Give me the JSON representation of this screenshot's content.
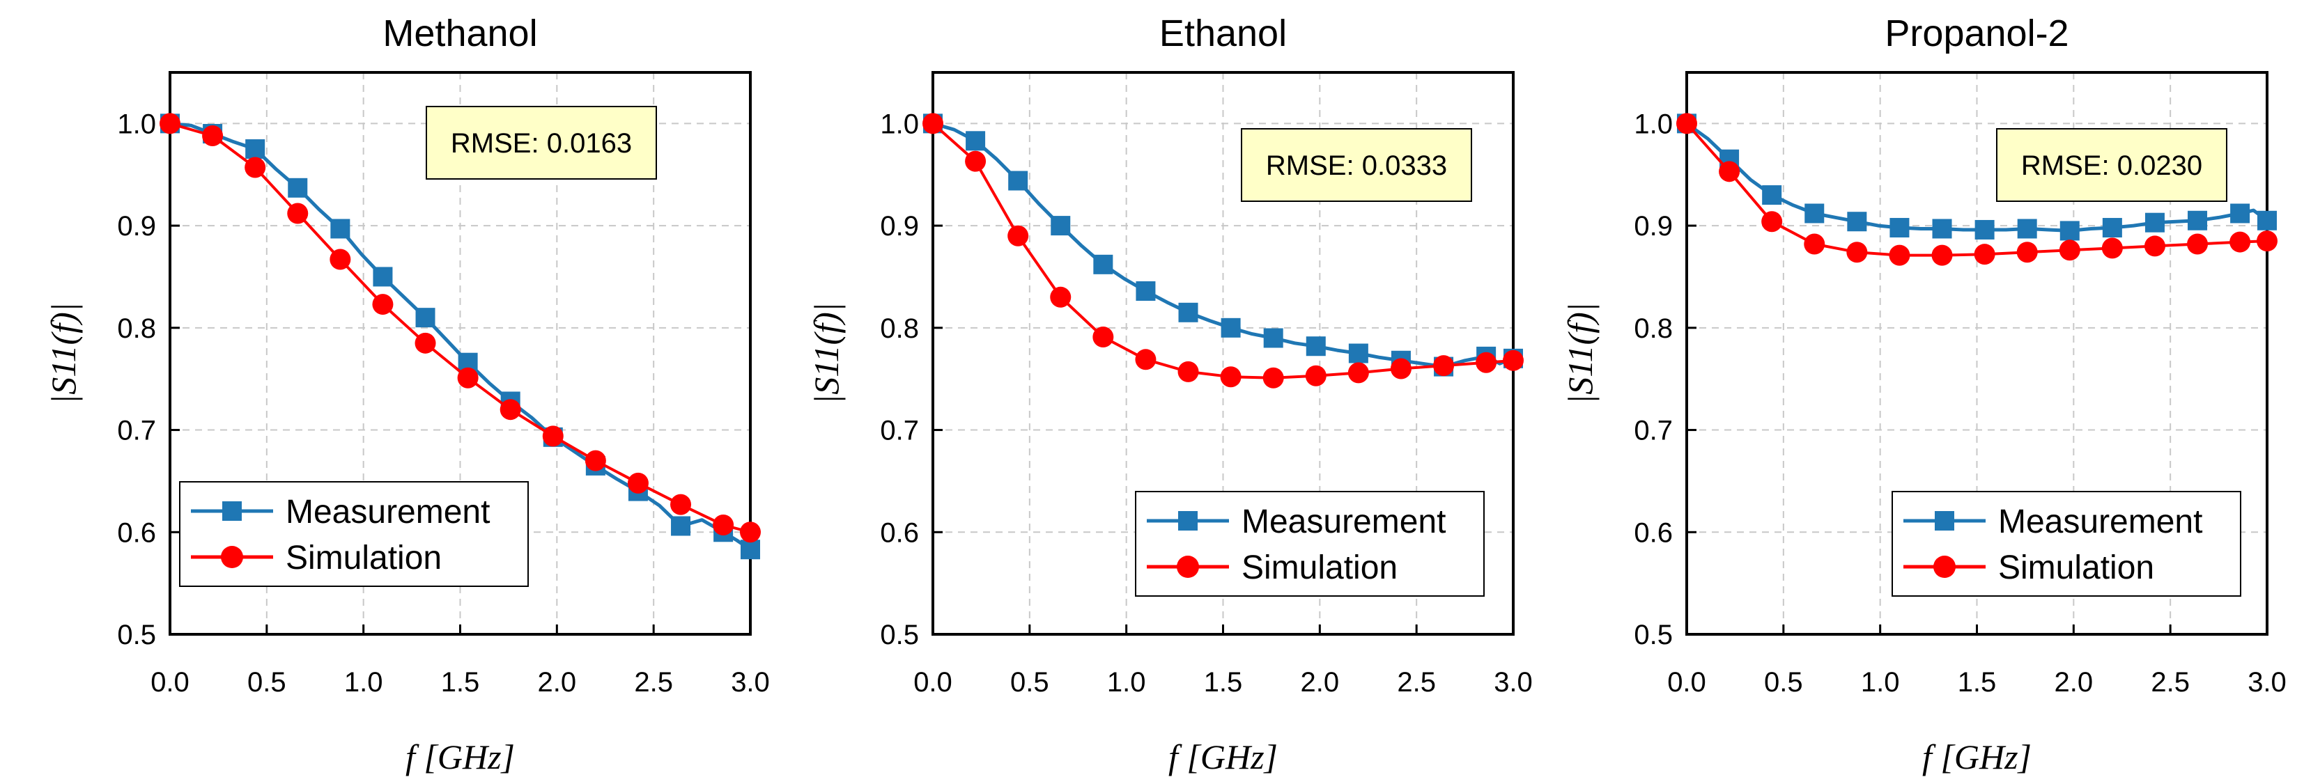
{
  "chart_data": [
    {
      "type": "line",
      "title": "Methanol",
      "xlabel": "f [GHz]",
      "ylabel": "|S11(f)|",
      "xlim": [
        0.0,
        3.0
      ],
      "ylim": [
        0.5,
        1.05
      ],
      "xticks": [
        "0.0",
        "0.5",
        "1.0",
        "1.5",
        "2.0",
        "2.5",
        "3.0"
      ],
      "yticks": [
        "0.5",
        "0.6",
        "0.7",
        "0.8",
        "0.9",
        "1.0"
      ],
      "grid": true,
      "legend_position": "bottom-left",
      "annotation": "RMSE: 0.0163",
      "series": [
        {
          "name": "Measurement",
          "color": "#1f77b4",
          "marker": "square",
          "markers": [
            [
              0.0,
              1.0
            ],
            [
              0.22,
              0.99
            ],
            [
              0.44,
              0.975
            ],
            [
              0.66,
              0.937
            ],
            [
              0.88,
              0.897
            ],
            [
              1.1,
              0.85
            ],
            [
              1.32,
              0.81
            ],
            [
              1.54,
              0.766
            ],
            [
              1.76,
              0.728
            ],
            [
              1.98,
              0.693
            ],
            [
              2.2,
              0.665
            ],
            [
              2.42,
              0.64
            ],
            [
              2.64,
              0.606
            ],
            [
              2.86,
              0.6
            ],
            [
              3.0,
              0.583
            ]
          ],
          "values": [
            [
              0.0,
              1.0
            ],
            [
              0.11,
              0.998
            ],
            [
              0.22,
              0.99
            ],
            [
              0.33,
              0.982
            ],
            [
              0.44,
              0.975
            ],
            [
              0.55,
              0.955
            ],
            [
              0.66,
              0.937
            ],
            [
              0.77,
              0.916
            ],
            [
              0.88,
              0.897
            ],
            [
              0.99,
              0.872
            ],
            [
              1.1,
              0.85
            ],
            [
              1.21,
              0.83
            ],
            [
              1.32,
              0.81
            ],
            [
              1.43,
              0.788
            ],
            [
              1.54,
              0.766
            ],
            [
              1.65,
              0.746
            ],
            [
              1.76,
              0.728
            ],
            [
              1.87,
              0.712
            ],
            [
              1.98,
              0.693
            ],
            [
              2.09,
              0.679
            ],
            [
              2.2,
              0.665
            ],
            [
              2.31,
              0.652
            ],
            [
              2.42,
              0.64
            ],
            [
              2.53,
              0.626
            ],
            [
              2.64,
              0.606
            ],
            [
              2.75,
              0.612
            ],
            [
              2.86,
              0.6
            ],
            [
              2.93,
              0.592
            ],
            [
              3.0,
              0.583
            ]
          ]
        },
        {
          "name": "Simulation",
          "color": "#ff0000",
          "marker": "circle",
          "values": [
            [
              0.0,
              1.0
            ],
            [
              0.22,
              0.988
            ],
            [
              0.44,
              0.957
            ],
            [
              0.66,
              0.912
            ],
            [
              0.88,
              0.867
            ],
            [
              1.1,
              0.823
            ],
            [
              1.32,
              0.785
            ],
            [
              1.54,
              0.751
            ],
            [
              1.76,
              0.72
            ],
            [
              1.98,
              0.694
            ],
            [
              2.2,
              0.67
            ],
            [
              2.42,
              0.648
            ],
            [
              2.64,
              0.627
            ],
            [
              2.86,
              0.607
            ],
            [
              3.0,
              0.6
            ]
          ]
        }
      ]
    },
    {
      "type": "line",
      "title": "Ethanol",
      "xlabel": "f [GHz]",
      "ylabel": "|S11(f)|",
      "xlim": [
        0.0,
        3.0
      ],
      "ylim": [
        0.5,
        1.05
      ],
      "xticks": [
        "0.0",
        "0.5",
        "1.0",
        "1.5",
        "2.0",
        "2.5",
        "3.0"
      ],
      "yticks": [
        "0.5",
        "0.6",
        "0.7",
        "0.8",
        "0.9",
        "1.0"
      ],
      "grid": true,
      "legend_position": "bottom-right",
      "annotation": "RMSE: 0.0333",
      "series": [
        {
          "name": "Measurement",
          "color": "#1f77b4",
          "marker": "square",
          "markers": [
            [
              0.0,
              1.0
            ],
            [
              0.22,
              0.983
            ],
            [
              0.44,
              0.944
            ],
            [
              0.66,
              0.9
            ],
            [
              0.88,
              0.862
            ],
            [
              1.1,
              0.836
            ],
            [
              1.32,
              0.815
            ],
            [
              1.54,
              0.8
            ],
            [
              1.76,
              0.79
            ],
            [
              1.98,
              0.782
            ],
            [
              2.2,
              0.775
            ],
            [
              2.42,
              0.768
            ],
            [
              2.64,
              0.762
            ],
            [
              2.86,
              0.772
            ],
            [
              3.0,
              0.77
            ]
          ],
          "values": [
            [
              0.0,
              1.0
            ],
            [
              0.11,
              0.994
            ],
            [
              0.22,
              0.983
            ],
            [
              0.33,
              0.965
            ],
            [
              0.44,
              0.944
            ],
            [
              0.55,
              0.921
            ],
            [
              0.66,
              0.9
            ],
            [
              0.77,
              0.88
            ],
            [
              0.88,
              0.862
            ],
            [
              0.99,
              0.848
            ],
            [
              1.1,
              0.836
            ],
            [
              1.21,
              0.825
            ],
            [
              1.32,
              0.815
            ],
            [
              1.43,
              0.807
            ],
            [
              1.54,
              0.8
            ],
            [
              1.65,
              0.794
            ],
            [
              1.76,
              0.79
            ],
            [
              1.87,
              0.785
            ],
            [
              1.98,
              0.782
            ],
            [
              2.09,
              0.778
            ],
            [
              2.2,
              0.775
            ],
            [
              2.31,
              0.771
            ],
            [
              2.42,
              0.768
            ],
            [
              2.53,
              0.765
            ],
            [
              2.64,
              0.762
            ],
            [
              2.75,
              0.768
            ],
            [
              2.86,
              0.772
            ],
            [
              2.93,
              0.765
            ],
            [
              3.0,
              0.77
            ]
          ]
        },
        {
          "name": "Simulation",
          "color": "#ff0000",
          "marker": "circle",
          "values": [
            [
              0.0,
              1.0
            ],
            [
              0.22,
              0.963
            ],
            [
              0.44,
              0.89
            ],
            [
              0.66,
              0.83
            ],
            [
              0.88,
              0.791
            ],
            [
              1.1,
              0.769
            ],
            [
              1.32,
              0.757
            ],
            [
              1.54,
              0.752
            ],
            [
              1.76,
              0.751
            ],
            [
              1.98,
              0.753
            ],
            [
              2.2,
              0.756
            ],
            [
              2.42,
              0.76
            ],
            [
              2.64,
              0.763
            ],
            [
              2.86,
              0.766
            ],
            [
              3.0,
              0.768
            ]
          ]
        }
      ]
    },
    {
      "type": "line",
      "title": "Propanol-2",
      "xlabel": "f [GHz]",
      "ylabel": "|S11(f)|",
      "xlim": [
        0.0,
        3.0
      ],
      "ylim": [
        0.5,
        1.05
      ],
      "xticks": [
        "0.0",
        "0.5",
        "1.0",
        "1.5",
        "2.0",
        "2.5",
        "3.0"
      ],
      "yticks": [
        "0.5",
        "0.6",
        "0.7",
        "0.8",
        "0.9",
        "1.0"
      ],
      "grid": true,
      "legend_position": "bottom-right",
      "annotation": "RMSE: 0.0230",
      "series": [
        {
          "name": "Measurement",
          "color": "#1f77b4",
          "marker": "square",
          "markers": [
            [
              0.0,
              1.0
            ],
            [
              0.22,
              0.965
            ],
            [
              0.44,
              0.93
            ],
            [
              0.66,
              0.912
            ],
            [
              0.88,
              0.904
            ],
            [
              1.1,
              0.898
            ],
            [
              1.32,
              0.897
            ],
            [
              1.54,
              0.896
            ],
            [
              1.76,
              0.897
            ],
            [
              1.98,
              0.895
            ],
            [
              2.2,
              0.898
            ],
            [
              2.42,
              0.903
            ],
            [
              2.64,
              0.905
            ],
            [
              2.86,
              0.912
            ],
            [
              3.0,
              0.905
            ]
          ],
          "values": [
            [
              0.0,
              1.0
            ],
            [
              0.11,
              0.985
            ],
            [
              0.22,
              0.965
            ],
            [
              0.33,
              0.945
            ],
            [
              0.44,
              0.93
            ],
            [
              0.55,
              0.92
            ],
            [
              0.66,
              0.912
            ],
            [
              0.77,
              0.908
            ],
            [
              0.88,
              0.904
            ],
            [
              0.99,
              0.9
            ],
            [
              1.1,
              0.898
            ],
            [
              1.21,
              0.897
            ],
            [
              1.32,
              0.897
            ],
            [
              1.43,
              0.896
            ],
            [
              1.54,
              0.896
            ],
            [
              1.65,
              0.896
            ],
            [
              1.76,
              0.897
            ],
            [
              1.87,
              0.896
            ],
            [
              1.98,
              0.895
            ],
            [
              2.09,
              0.897
            ],
            [
              2.2,
              0.898
            ],
            [
              2.31,
              0.9
            ],
            [
              2.42,
              0.903
            ],
            [
              2.53,
              0.904
            ],
            [
              2.64,
              0.905
            ],
            [
              2.75,
              0.908
            ],
            [
              2.86,
              0.912
            ],
            [
              2.93,
              0.915
            ],
            [
              3.0,
              0.905
            ]
          ]
        },
        {
          "name": "Simulation",
          "color": "#ff0000",
          "marker": "circle",
          "values": [
            [
              0.0,
              1.0
            ],
            [
              0.22,
              0.953
            ],
            [
              0.44,
              0.904
            ],
            [
              0.66,
              0.882
            ],
            [
              0.88,
              0.874
            ],
            [
              1.1,
              0.871
            ],
            [
              1.32,
              0.871
            ],
            [
              1.54,
              0.872
            ],
            [
              1.76,
              0.874
            ],
            [
              1.98,
              0.876
            ],
            [
              2.2,
              0.878
            ],
            [
              2.42,
              0.88
            ],
            [
              2.64,
              0.882
            ],
            [
              2.86,
              0.884
            ],
            [
              3.0,
              0.885
            ]
          ]
        }
      ]
    }
  ]
}
